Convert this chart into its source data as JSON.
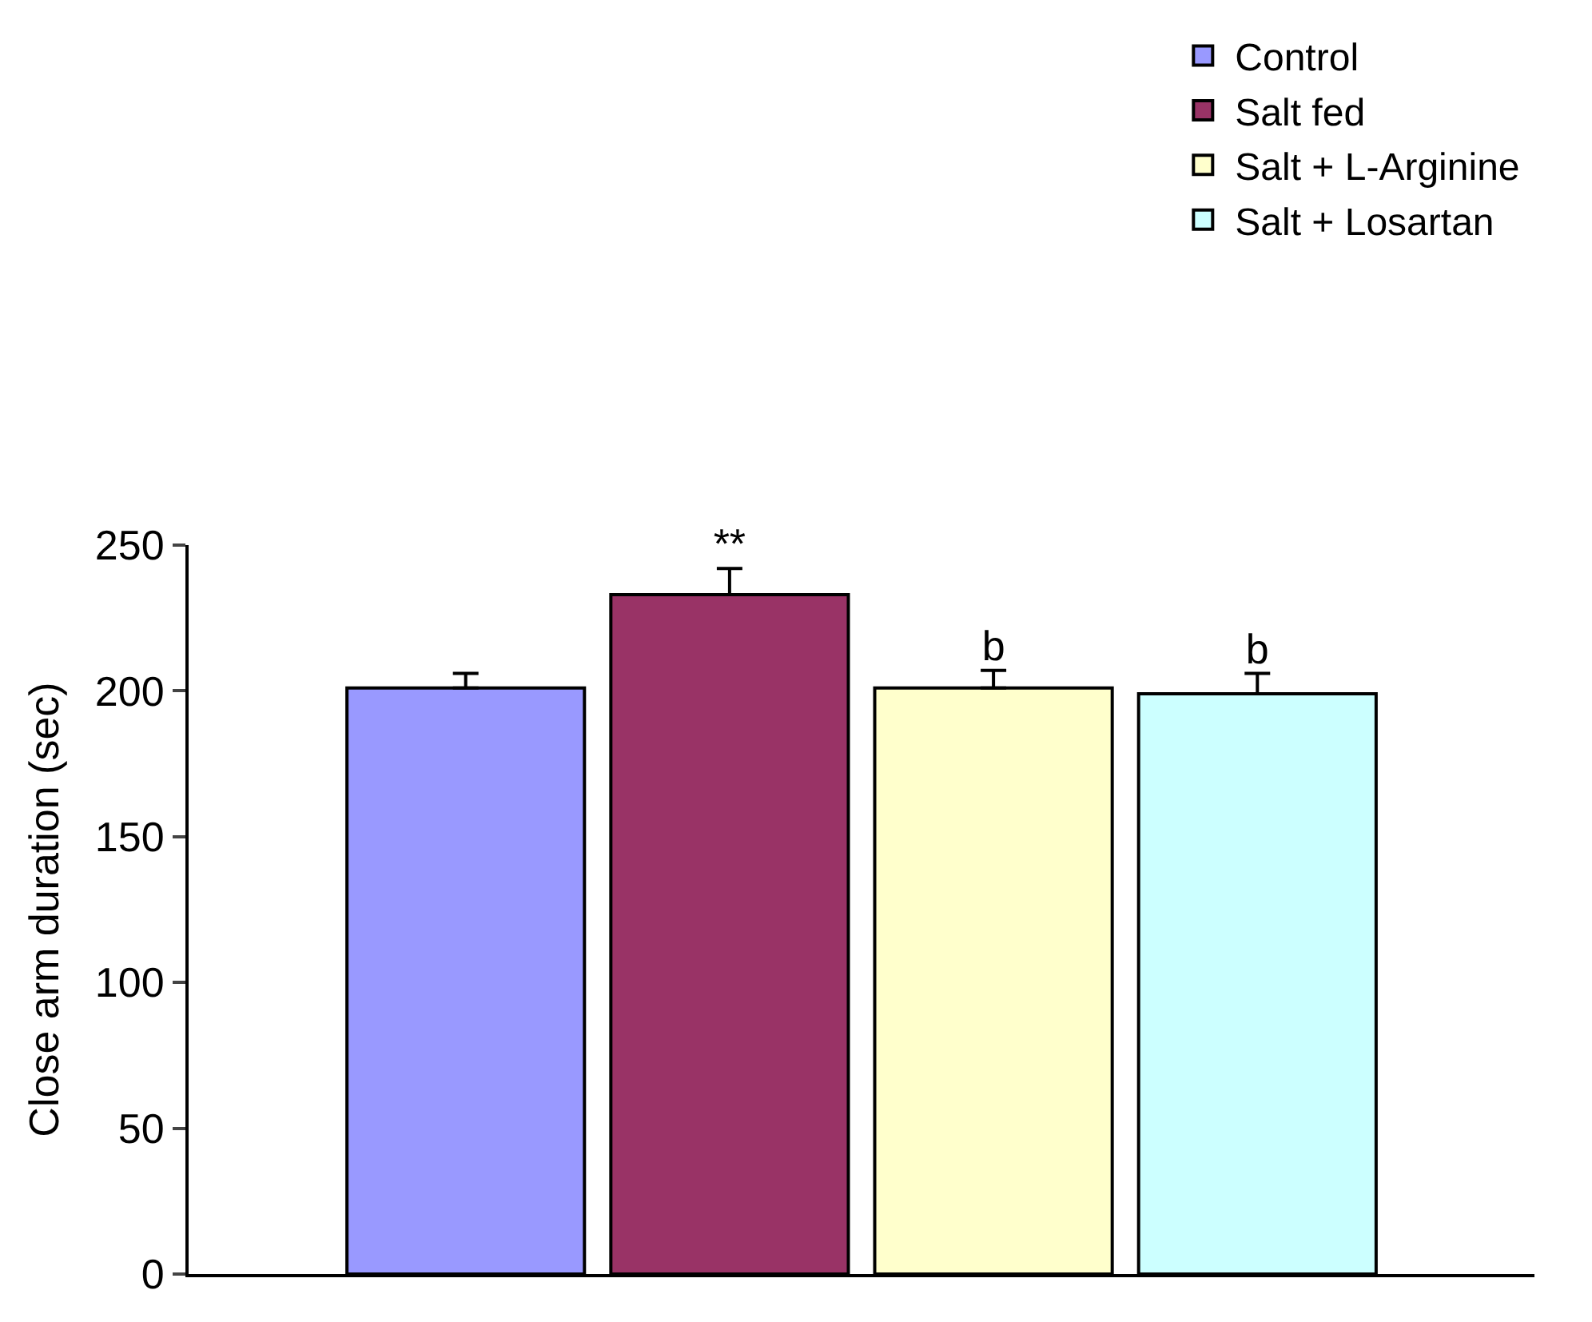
{
  "chart_data": {
    "type": "bar",
    "ylabel": "Close arm duration (sec)",
    "categories": [
      null,
      null,
      null,
      null
    ],
    "series": [
      {
        "name": "Control",
        "color": "#9999ff",
        "values": [
          201,
          null,
          null,
          null
        ],
        "errors": [
          5,
          null,
          null,
          null
        ],
        "value_labels": [
          null,
          null,
          null,
          null
        ]
      },
      {
        "name": "Salt fed",
        "color": "#993366",
        "values": [
          null,
          233,
          null,
          null
        ],
        "errors": [
          null,
          9,
          null,
          null
        ],
        "value_labels": [
          null,
          "**",
          null,
          null
        ]
      },
      {
        "name": "Salt + L-Arginine",
        "color": "#ffffcc",
        "values": [
          null,
          null,
          201,
          null
        ],
        "errors": [
          null,
          null,
          6,
          null
        ],
        "value_labels": [
          null,
          null,
          "b",
          null
        ]
      },
      {
        "name": "Salt + Losartan",
        "color": "#ccffff",
        "values": [
          null,
          null,
          null,
          199
        ],
        "errors": [
          null,
          null,
          null,
          7
        ],
        "value_labels": [
          null,
          null,
          null,
          "b"
        ]
      }
    ],
    "ylim": [
      0,
      250
    ],
    "yticks": [
      0,
      50,
      100,
      150,
      200,
      250
    ],
    "legend": "top right"
  }
}
